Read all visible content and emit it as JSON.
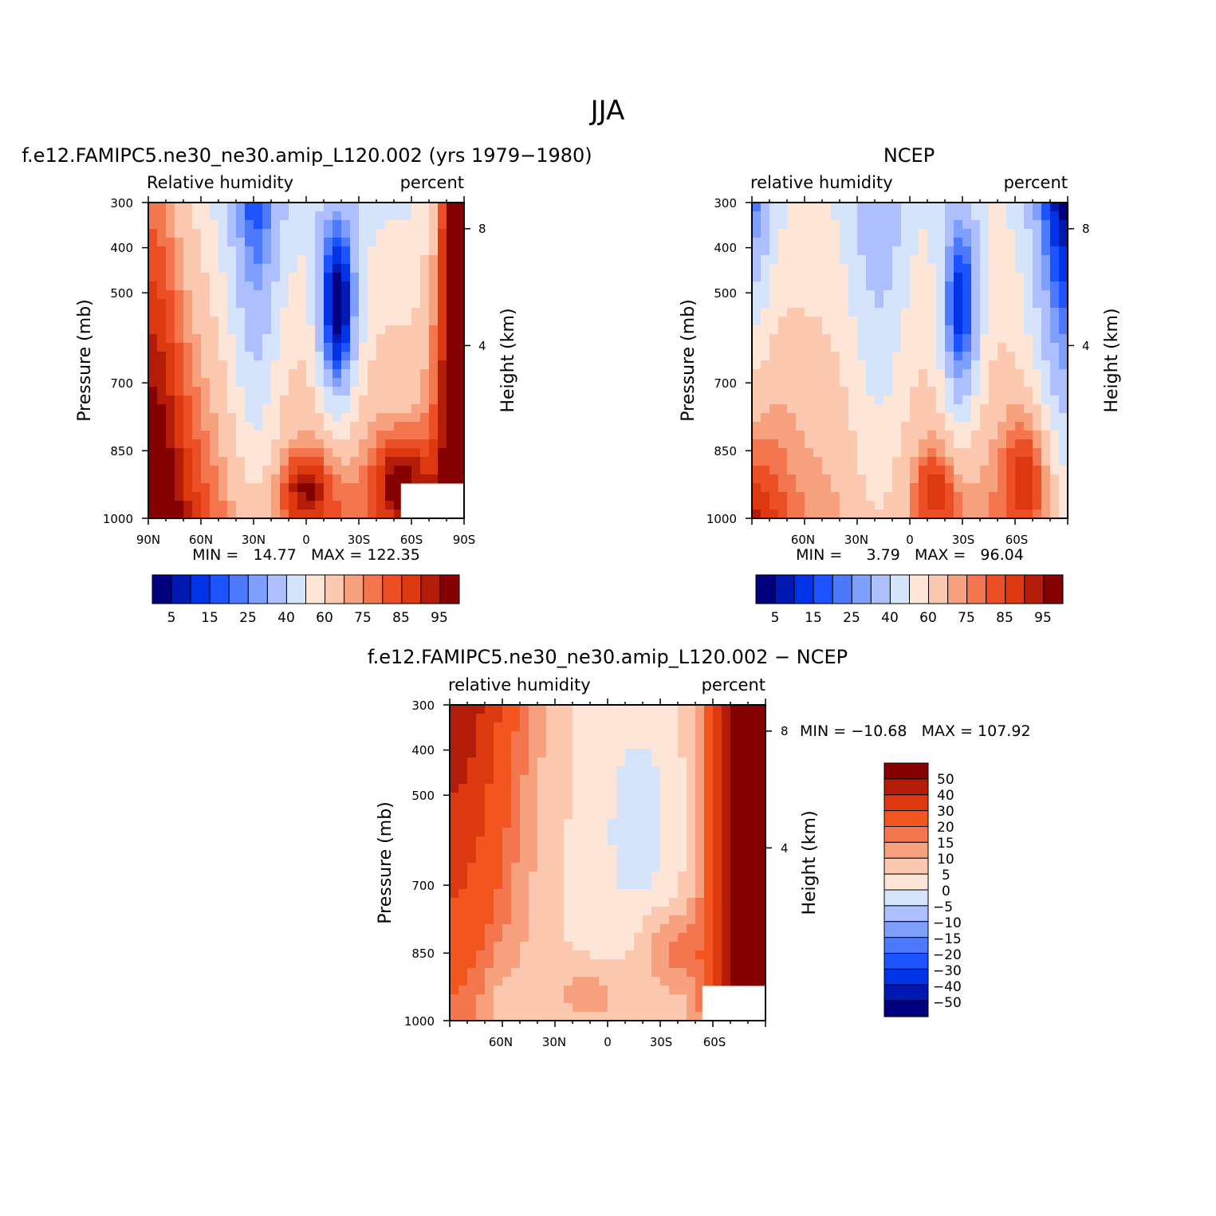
{
  "figure": {
    "title": "JJA"
  },
  "colors": {
    "abs_palette": [
      "#00007f",
      "#0019b3",
      "#0033e6",
      "#1a53ff",
      "#4d79ff",
      "#7f9fff",
      "#aebfff",
      "#d6e4fb",
      "#fde6d8",
      "#fcc9b0",
      "#f8a17f",
      "#f3764f",
      "#ec4f26",
      "#dc3911",
      "#b21c08",
      "#850000"
    ],
    "diff_palette": [
      "#850000",
      "#b21c08",
      "#dc3911",
      "#f3551f",
      "#f3764f",
      "#f8a17f",
      "#fcc9b0",
      "#fde6d8",
      "#d6e4fb",
      "#aebfff",
      "#7f9fff",
      "#4d79ff",
      "#1a53ff",
      "#0033e6",
      "#0019b3",
      "#00007f"
    ]
  },
  "chart_data": [
    {
      "type": "heatmap",
      "title": "f.e12.FAMIPC5.ne30_ne30.amip_L120.002 (yrs 1979−1980)",
      "left_label": "Relative humidity",
      "right_label": "percent",
      "ylabel": "Pressure (mb)",
      "y2label": "Height (km)",
      "x_ticks": [
        "90N",
        "60N",
        "30N",
        "0",
        "30S",
        "60S",
        "90S"
      ],
      "y_ticks": [
        "300",
        "400",
        "500",
        "700",
        "850",
        "1000"
      ],
      "y2_ticks": [
        "8",
        "4"
      ],
      "min_max_text": "MIN =   14.77   MAX = 122.35",
      "levels": [
        "5",
        "15",
        "25",
        "40",
        "60",
        "75",
        "85",
        "95"
      ],
      "field": "model_rh",
      "has_missing_box": true
    },
    {
      "type": "heatmap",
      "title": "NCEP",
      "left_label": "relative humidity",
      "right_label": "percent",
      "ylabel": "Pressure (mb)",
      "y2label": "Height (km)",
      "x_ticks": [
        "60N",
        "30N",
        "0",
        "30S",
        "60S"
      ],
      "y_ticks": [
        "300",
        "400",
        "500",
        "700",
        "850",
        "1000"
      ],
      "y2_ticks": [
        "8",
        "4"
      ],
      "min_max_text": "MIN =     3.79   MAX =   96.04",
      "levels": [
        "5",
        "15",
        "25",
        "40",
        "60",
        "75",
        "85",
        "95"
      ],
      "field": "ncep_rh",
      "has_missing_box": false
    },
    {
      "type": "heatmap",
      "title": "f.e12.FAMIPC5.ne30_ne30.amip_L120.002 − NCEP",
      "left_label": "relative humidity",
      "right_label": "percent",
      "ylabel": "Pressure (mb)",
      "y2label": "Height (km)",
      "x_ticks": [
        "60N",
        "30N",
        "0",
        "30S",
        "60S"
      ],
      "y_ticks": [
        "300",
        "400",
        "500",
        "700",
        "850",
        "1000"
      ],
      "y2_ticks": [
        "8",
        "4"
      ],
      "min_max_text": "MIN = −10.68   MAX = 107.92",
      "levels": [
        "50",
        "40",
        "30",
        "20",
        "15",
        "10",
        "5",
        "0",
        "−5",
        "−10",
        "−15",
        "−20",
        "−30",
        "−40",
        "−50"
      ],
      "field": "diff_rh",
      "has_missing_box": true
    }
  ]
}
